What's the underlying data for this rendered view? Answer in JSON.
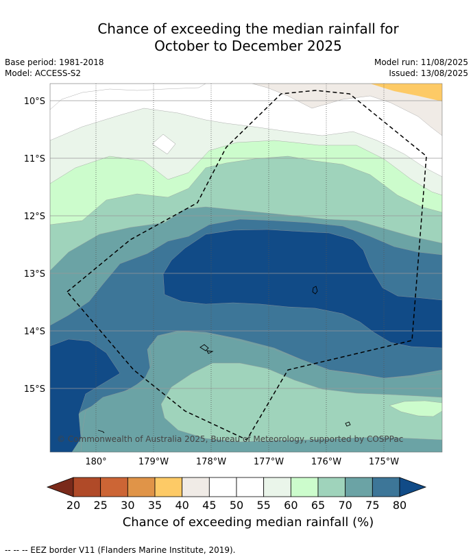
{
  "title_line1": "Chance of exceeding the median rainfall for",
  "title_line2": "October to December 2025",
  "base_period": "Base period: 1981-2018",
  "model": "Model: ACCESS-S2",
  "model_run": "Model run: 11/08/2025",
  "issued": "Issued: 13/08/2025",
  "copyright": "© Commonwealth of Australia 2025, Bureau of Meteorology, supported by COSPPac",
  "lat_labels": [
    "10°S",
    "11°S",
    "12°S",
    "13°S",
    "14°S",
    "15°S"
  ],
  "lon_labels": [
    "180°",
    "179°W",
    "178°W",
    "177°W",
    "176°W",
    "175°W"
  ],
  "colorbar": {
    "ticks": [
      "20",
      "25",
      "30",
      "35",
      "40",
      "45",
      "50",
      "55",
      "60",
      "65",
      "70",
      "75",
      "80"
    ],
    "colors": [
      "#7a2a1a",
      "#b04a28",
      "#cc6535",
      "#e09448",
      "#fdca66",
      "#f0ebe6",
      "#ffffff",
      "#ffffff",
      "#eaf5ea",
      "#ccfccc",
      "#9fd3bb",
      "#6ba3a5",
      "#3d7698",
      "#114b87"
    ],
    "label": "Chance of exceeding median rainfall (%)"
  },
  "footnote": "--  --  -- EEZ border V11 (Flanders Marine Institute, 2019)."
}
